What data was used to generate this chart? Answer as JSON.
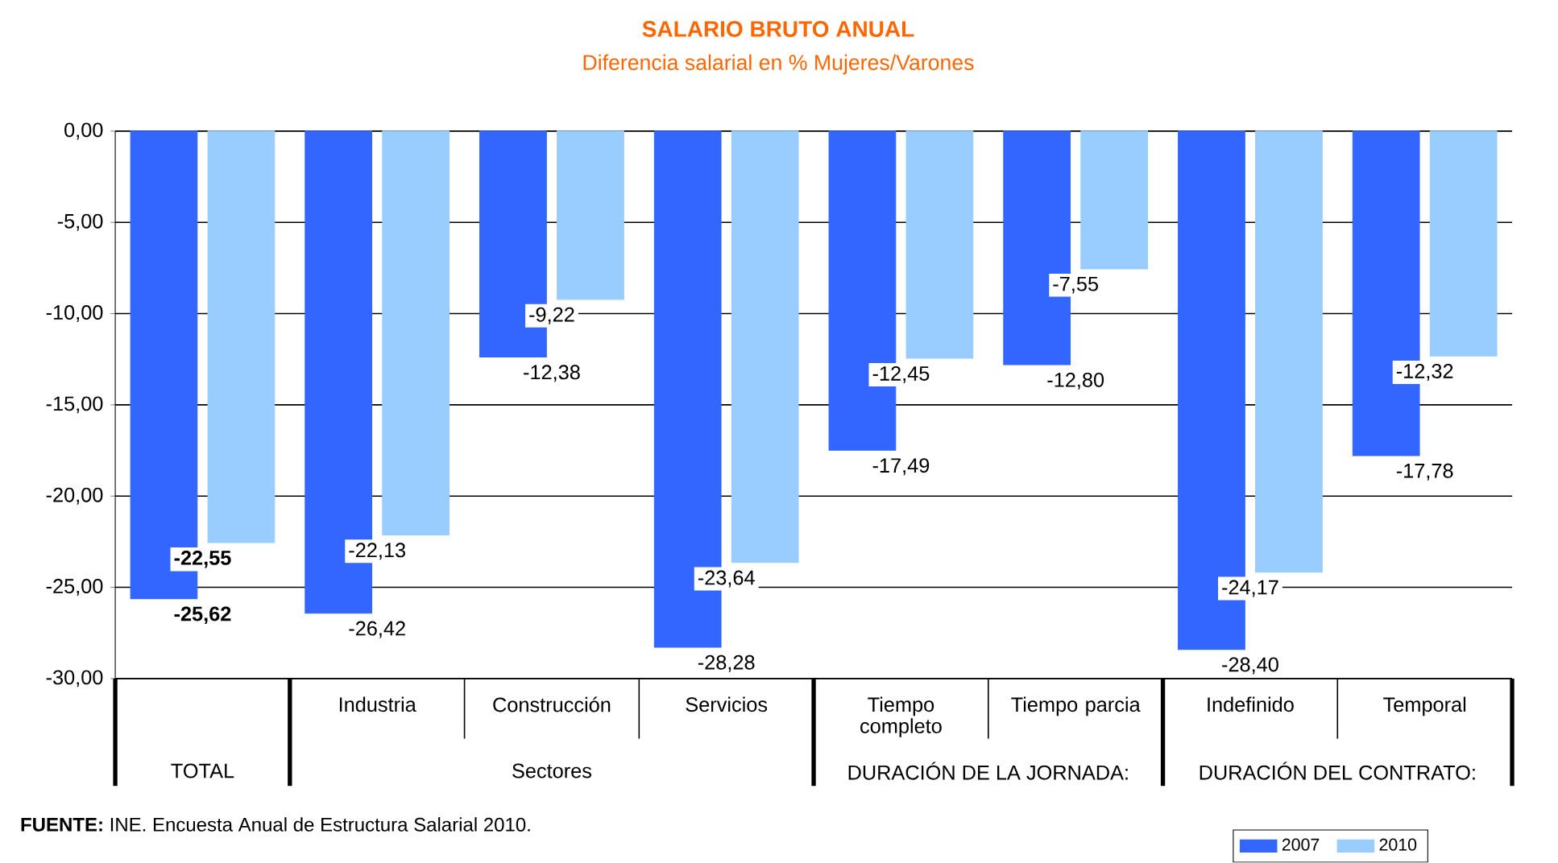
{
  "chart_data": {
    "type": "bar",
    "title": "SALARIO BRUTO ANUAL",
    "subtitle": "Diferencia salarial en % Mujeres/Varones",
    "categories": [
      null,
      "Industria",
      "Construcción",
      "Servicios",
      "Tiempo completo",
      "Tiempo parcia",
      "Indefinido",
      "Temporal"
    ],
    "series": [
      {
        "name": "2007",
        "color": "#3366ff",
        "values": [
          -25.62,
          -26.42,
          -12.38,
          -28.28,
          -17.49,
          -12.8,
          -28.4,
          -17.78
        ],
        "value_labels": [
          "-25,62",
          "-26,42",
          "-12,38",
          "-28,28",
          "-17,49",
          "-12,80",
          "-28,40",
          "-17,78"
        ]
      },
      {
        "name": "2010",
        "color": "#99ccff",
        "values": [
          -22.55,
          -22.13,
          -9.22,
          -23.64,
          -12.45,
          -7.55,
          -24.17,
          -12.32
        ],
        "value_labels": [
          "-22,55",
          "-22,13",
          "-9,22",
          "-23,64",
          "-12,45",
          "-7,55",
          "-24,17",
          "-12,32"
        ]
      }
    ],
    "ylim": [
      -30,
      0
    ],
    "yticks": [
      {
        "value": 0,
        "label": "0,00"
      },
      {
        "value": -5,
        "label": "-5,00"
      },
      {
        "value": -10,
        "label": "-10,00"
      },
      {
        "value": -15,
        "label": "-15,00"
      },
      {
        "value": -20,
        "label": "-20,00"
      },
      {
        "value": -25,
        "label": "-25,00"
      },
      {
        "value": -30,
        "label": "-30,00"
      }
    ],
    "grid": "y",
    "legend": "bottom right",
    "annotations": [
      "TOTAL",
      "Sectores",
      "DURACIÓN DE LA JORNADA:",
      "DURACIÓN DEL CONTRATO:",
      "**FUENTE:** INE. Encuesta Anual de Estructura Salarial 2010."
    ]
  }
}
